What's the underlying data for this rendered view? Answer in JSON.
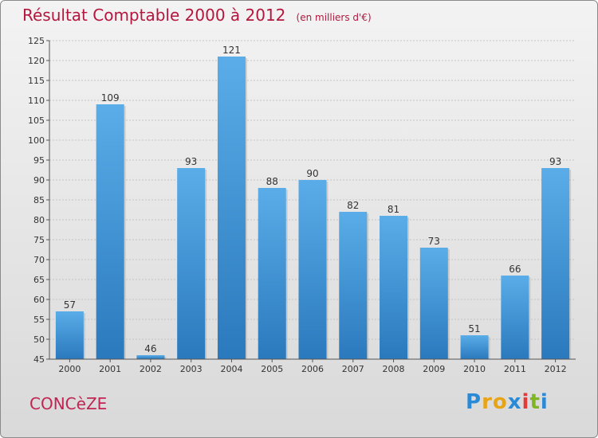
{
  "title": "Résultat Comptable 2000 à 2012",
  "subtitle": "(en milliers d'€)",
  "commune": "CONCèZE",
  "logo": {
    "letters": [
      {
        "char": "P",
        "color": "#2b8ad6"
      },
      {
        "char": "r",
        "color": "#e8a417"
      },
      {
        "char": "o",
        "color": "#e8a417"
      },
      {
        "char": "x",
        "color": "#2b8ad6"
      },
      {
        "char": "i",
        "color": "#e03a3a"
      },
      {
        "char": "t",
        "color": "#7fb622"
      },
      {
        "char": "i",
        "color": "#2b8ad6"
      }
    ]
  },
  "chart_data": {
    "type": "bar",
    "categories": [
      "2000",
      "2001",
      "2002",
      "2003",
      "2004",
      "2005",
      "2006",
      "2007",
      "2008",
      "2009",
      "2010",
      "2011",
      "2012"
    ],
    "values": [
      57,
      109,
      46,
      93,
      121,
      88,
      90,
      82,
      81,
      73,
      51,
      66,
      93
    ],
    "ylim": [
      45,
      125
    ],
    "yticks": [
      45,
      50,
      55,
      60,
      65,
      70,
      75,
      80,
      85,
      90,
      95,
      100,
      105,
      110,
      115,
      120,
      125
    ],
    "grid": true,
    "bar_color": "#4c9fe0"
  }
}
